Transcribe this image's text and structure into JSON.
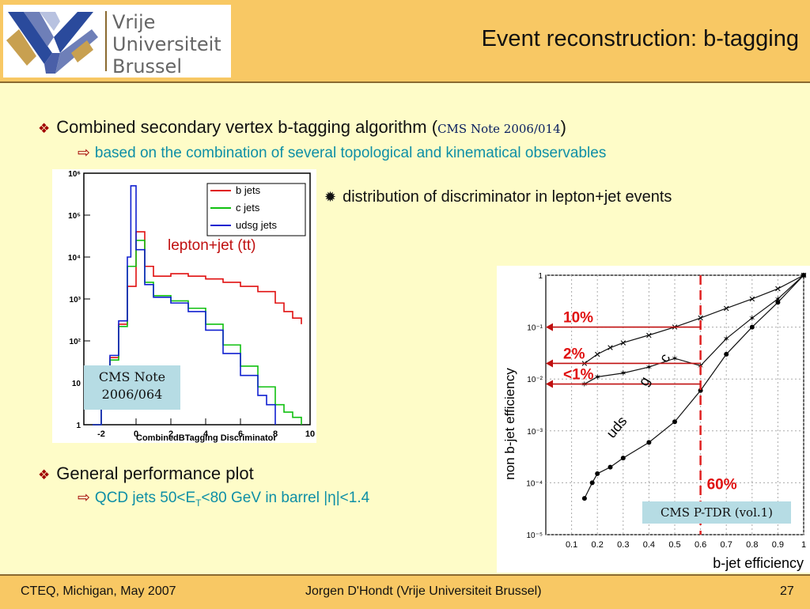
{
  "header": {
    "logo": {
      "line1": "Vrije",
      "line2": "Universiteit",
      "line3": "Brussel"
    },
    "title": "Event reconstruction: b-tagging"
  },
  "bullets": {
    "b1": {
      "text": "Combined secondary vertex b-tagging algorithm ",
      "ref_open": "(",
      "ref": "CMS Note 2006/014",
      "ref_close": ")"
    },
    "b1_sub": "based on the combination of several topological and kinematical observables",
    "b2": "distribution of discriminator in lepton+jet events",
    "b3": "General performance plot",
    "b3_sub": {
      "pre": "QCD jets 50<E",
      "sub": "T",
      "post": "<80 GeV in barrel |η|<1.4"
    }
  },
  "chart_data": [
    {
      "type": "line",
      "title": "",
      "annotation": "lepton+jet (tt)",
      "xlabel": "CombinedBTagging Discriminator",
      "ylabel": "",
      "xlim": [
        -3,
        10
      ],
      "ylog": true,
      "ylim": [
        1,
        1000000
      ],
      "xticks": [
        "-2",
        "0",
        "2",
        "4",
        "6",
        "8",
        "10"
      ],
      "yticks": [
        "1",
        "10",
        "10²",
        "10³",
        "10⁴",
        "10⁵",
        "10⁶"
      ],
      "legend_position": "top-right",
      "series": [
        {
          "name": "b jets",
          "color": "#e01010",
          "x": [
            -2.5,
            -2,
            -1.5,
            -1,
            -0.5,
            0,
            0.5,
            1,
            2,
            3,
            4,
            5,
            6,
            7,
            8,
            8.5,
            9,
            9.5
          ],
          "y": [
            1,
            6,
            40,
            250,
            2000,
            40000,
            6000,
            3500,
            4000,
            3500,
            3000,
            2500,
            2000,
            1500,
            800,
            500,
            350,
            250
          ]
        },
        {
          "name": "c jets",
          "color": "#10c010",
          "x": [
            -2.5,
            -2,
            -1.5,
            -1,
            -0.5,
            0,
            0.5,
            1,
            2,
            3,
            4,
            5,
            6,
            7,
            8,
            8.5,
            9,
            9.5
          ],
          "y": [
            1,
            5,
            35,
            220,
            6000,
            25000,
            2500,
            1200,
            900,
            600,
            250,
            80,
            25,
            8,
            3,
            2,
            1.5,
            1
          ]
        },
        {
          "name": "udsg jets",
          "color": "#1020d0",
          "x": [
            -2.5,
            -2,
            -1.5,
            -1,
            -0.5,
            -0.3,
            0,
            0.5,
            1,
            2,
            3,
            4,
            5,
            6,
            7,
            7.5,
            8
          ],
          "y": [
            1,
            6,
            45,
            300,
            10000,
            500000,
            15000,
            2200,
            1100,
            800,
            500,
            180,
            50,
            15,
            5,
            3,
            1
          ]
        }
      ],
      "ref_box": {
        "line1": "CMS Note",
        "line2": "2006/064"
      }
    },
    {
      "type": "scatter",
      "title": "",
      "xlabel": "b-jet efficiency",
      "ylabel": "non b-jet efficiency",
      "xlim": [
        0,
        1
      ],
      "ylog": true,
      "ylim": [
        1e-05,
        1
      ],
      "xticks": [
        "0.1",
        "0.2",
        "0.3",
        "0.4",
        "0.5",
        "0.6",
        "0.7",
        "0.8",
        "0.9",
        "1"
      ],
      "yticks": [
        "10⁻⁵",
        "10⁻⁴",
        "10⁻³",
        "10⁻²",
        "10⁻¹",
        "1"
      ],
      "series": [
        {
          "name": "c",
          "x": [
            0.15,
            0.2,
            0.25,
            0.3,
            0.4,
            0.5,
            0.6,
            0.7,
            0.8,
            0.9,
            1.0
          ],
          "y": [
            0.02,
            0.03,
            0.04,
            0.05,
            0.07,
            0.1,
            0.15,
            0.23,
            0.35,
            0.55,
            1.0
          ]
        },
        {
          "name": "g",
          "x": [
            0.15,
            0.2,
            0.3,
            0.4,
            0.5,
            0.6,
            0.7,
            0.8,
            0.9,
            1.0
          ],
          "y": [
            0.008,
            0.011,
            0.013,
            0.017,
            0.025,
            0.018,
            0.06,
            0.15,
            0.35,
            1.0
          ]
        },
        {
          "name": "uds",
          "x": [
            0.15,
            0.18,
            0.2,
            0.25,
            0.3,
            0.4,
            0.5,
            0.6,
            0.7,
            0.8,
            0.9,
            1.0
          ],
          "y": [
            5e-05,
            0.0001,
            0.00015,
            0.0002,
            0.0003,
            0.0006,
            0.0015,
            0.006,
            0.03,
            0.1,
            0.3,
            1.0
          ]
        }
      ],
      "annotations": [
        "10%",
        "2%",
        "<1%",
        "60%"
      ],
      "annotation_levels": [
        0.1,
        0.02,
        0.008
      ],
      "cut_x": 0.6,
      "ref_box": {
        "text": "CMS P-TDR (vol.1)"
      }
    }
  ],
  "footer": {
    "left": "CTEQ, Michigan, May 2007",
    "center": "Jorgen D'Hondt  (Vrije Universiteit Brussel)",
    "right": "27"
  }
}
